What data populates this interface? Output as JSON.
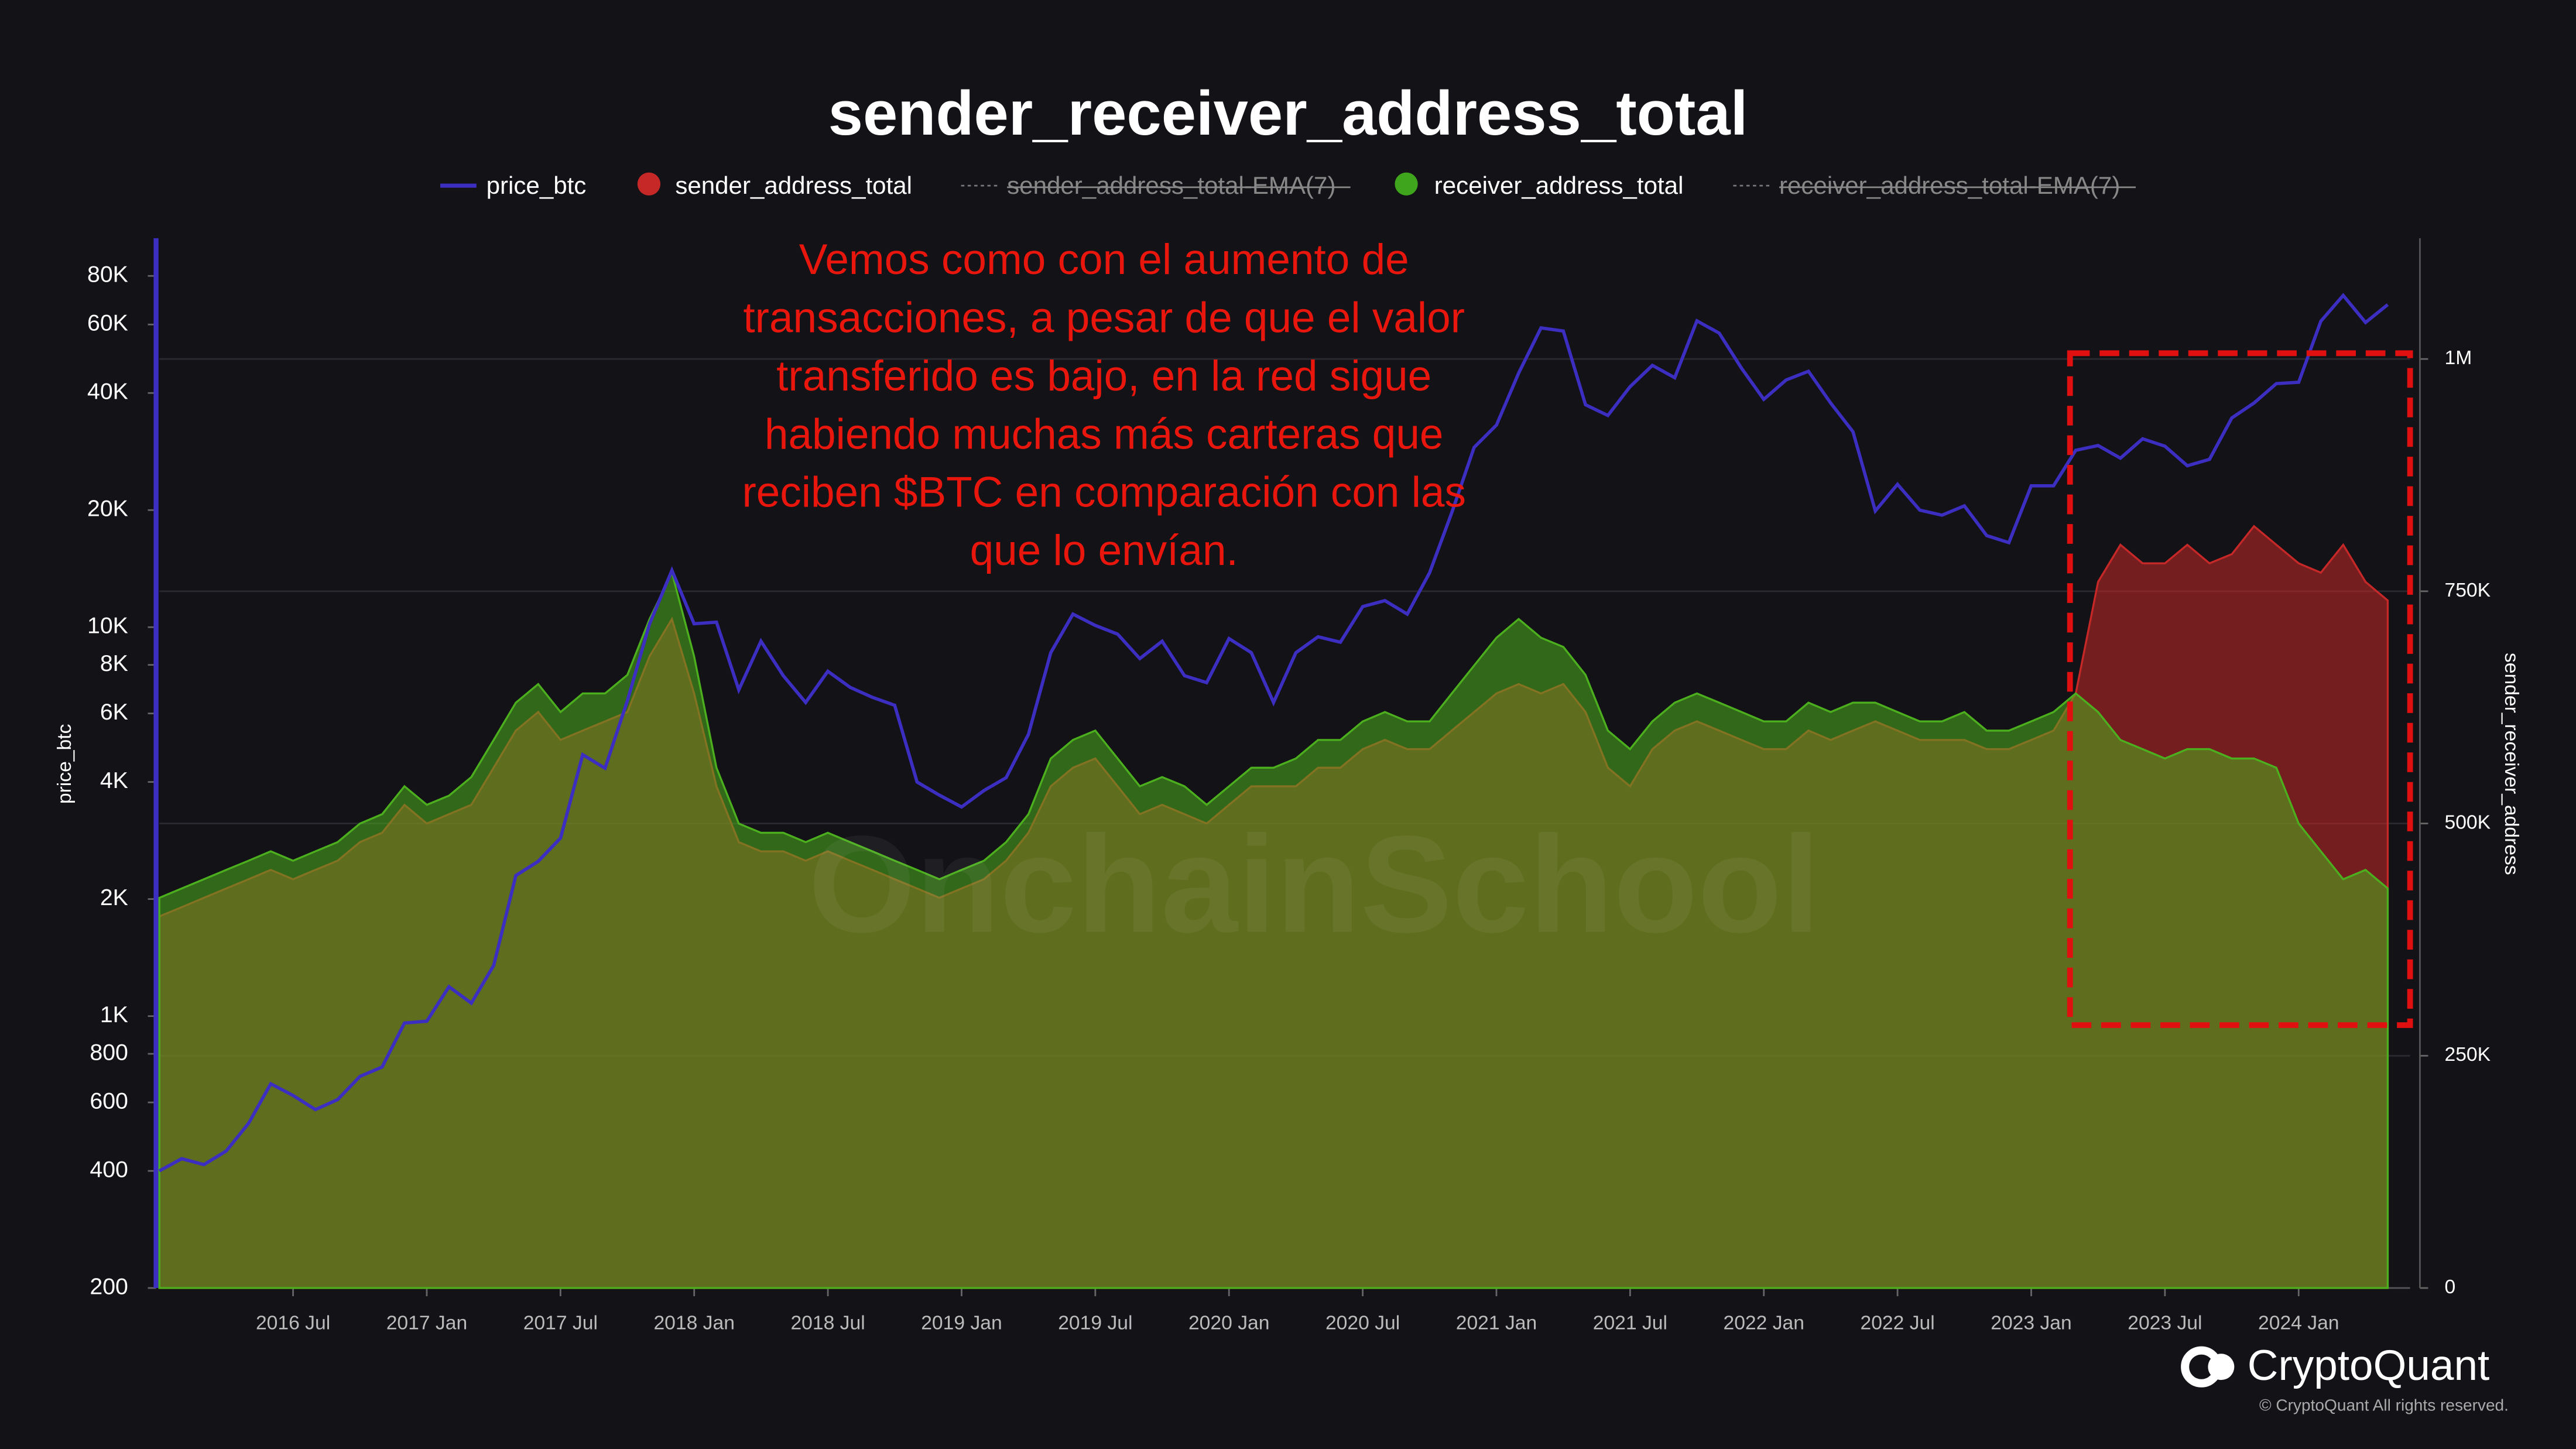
{
  "chart_data": {
    "type": "dual_axis_area_line",
    "title": "sender_receiver_address_total",
    "ylabel": "price_btc",
    "y2label": "sender_receiver_address",
    "log_y": true,
    "grid": true,
    "annotation": [
      "Vemos como con el aumento de",
      "transacciones, a pesar de que el valor",
      "transferido es bajo, en la red sigue",
      "habiendo muchas más carteras que",
      "reciben $BTC en comparación con las",
      "que lo envían."
    ],
    "watermark": "OnchainSchool",
    "brand": "CryptoQuant",
    "copyright": "© CryptoQuant All rights reserved.",
    "legend_hidden": [
      "sender_address_total-EMA(7)",
      "receiver_address_total-EMA(7)"
    ],
    "xlim": [
      "2016-01",
      "2024-06"
    ],
    "xticks": [
      {
        "value": "2016-07",
        "label": "2016 Jul"
      },
      {
        "value": "2017-01",
        "label": "2017 Jan"
      },
      {
        "value": "2017-07",
        "label": "2017 Jul"
      },
      {
        "value": "2018-01",
        "label": "2018 Jan"
      },
      {
        "value": "2018-07",
        "label": "2018 Jul"
      },
      {
        "value": "2019-01",
        "label": "2019 Jan"
      },
      {
        "value": "2019-07",
        "label": "2019 Jul"
      },
      {
        "value": "2020-01",
        "label": "2020 Jan"
      },
      {
        "value": "2020-07",
        "label": "2020 Jul"
      },
      {
        "value": "2021-01",
        "label": "2021 Jan"
      },
      {
        "value": "2021-07",
        "label": "2021 Jul"
      },
      {
        "value": "2022-01",
        "label": "2022 Jan"
      },
      {
        "value": "2022-07",
        "label": "2022 Jul"
      },
      {
        "value": "2023-01",
        "label": "2023 Jan"
      },
      {
        "value": "2023-07",
        "label": "2023 Jul"
      },
      {
        "value": "2024-01",
        "label": "2024 Jan"
      }
    ],
    "ylim": [
      200,
      100000
    ],
    "yticks": [
      200,
      400,
      600,
      800,
      {
        "value": 1000,
        "label": "1K"
      },
      {
        "value": 2000,
        "label": "2K"
      },
      {
        "value": 4000,
        "label": "4K"
      },
      {
        "value": 6000,
        "label": "6K"
      },
      {
        "value": 8000,
        "label": "8K"
      },
      {
        "value": 10000,
        "label": "10K"
      },
      {
        "value": 20000,
        "label": "20K"
      },
      {
        "value": 40000,
        "label": "40K"
      },
      {
        "value": 60000,
        "label": "60K"
      },
      {
        "value": 80000,
        "label": "80K"
      }
    ],
    "y2lim": [
      0,
      1130000
    ],
    "y2ticks": [
      0,
      {
        "value": 250000,
        "label": "250K"
      },
      {
        "value": 500000,
        "label": "500K"
      },
      {
        "value": 750000,
        "label": "750K"
      },
      {
        "value": 1000000,
        "label": "1M"
      }
    ],
    "x": [
      "2016-01",
      "2016-02",
      "2016-03",
      "2016-04",
      "2016-05",
      "2016-06",
      "2016-07",
      "2016-08",
      "2016-09",
      "2016-10",
      "2016-11",
      "2016-12",
      "2017-01",
      "2017-02",
      "2017-03",
      "2017-04",
      "2017-05",
      "2017-06",
      "2017-07",
      "2017-08",
      "2017-09",
      "2017-10",
      "2017-11",
      "2017-12",
      "2018-01",
      "2018-02",
      "2018-03",
      "2018-04",
      "2018-05",
      "2018-06",
      "2018-07",
      "2018-08",
      "2018-09",
      "2018-10",
      "2018-11",
      "2018-12",
      "2019-01",
      "2019-02",
      "2019-03",
      "2019-04",
      "2019-05",
      "2019-06",
      "2019-07",
      "2019-08",
      "2019-09",
      "2019-10",
      "2019-11",
      "2019-12",
      "2020-01",
      "2020-02",
      "2020-03",
      "2020-04",
      "2020-05",
      "2020-06",
      "2020-07",
      "2020-08",
      "2020-09",
      "2020-10",
      "2020-11",
      "2020-12",
      "2021-01",
      "2021-02",
      "2021-03",
      "2021-04",
      "2021-05",
      "2021-06",
      "2021-07",
      "2021-08",
      "2021-09",
      "2021-10",
      "2021-11",
      "2021-12",
      "2022-01",
      "2022-02",
      "2022-03",
      "2022-04",
      "2022-05",
      "2022-06",
      "2022-07",
      "2022-08",
      "2022-09",
      "2022-10",
      "2022-11",
      "2022-12",
      "2023-01",
      "2023-02",
      "2023-03",
      "2023-04",
      "2023-05",
      "2023-06",
      "2023-07",
      "2023-08",
      "2023-09",
      "2023-10",
      "2023-11",
      "2023-12",
      "2024-01",
      "2024-02",
      "2024-03",
      "2024-04",
      "2024-05"
    ],
    "series": [
      {
        "name": "sender_address_total",
        "color": "#c62828",
        "axis": "y2",
        "kind": "area",
        "values": [
          400000,
          410000,
          420000,
          430000,
          440000,
          450000,
          440000,
          450000,
          460000,
          480000,
          490000,
          520000,
          500000,
          510000,
          520000,
          560000,
          600000,
          620000,
          590000,
          600000,
          610000,
          620000,
          680000,
          720000,
          640000,
          540000,
          480000,
          470000,
          470000,
          460000,
          470000,
          460000,
          450000,
          440000,
          430000,
          420000,
          430000,
          440000,
          460000,
          490000,
          540000,
          560000,
          570000,
          540000,
          510000,
          520000,
          510000,
          500000,
          520000,
          540000,
          540000,
          540000,
          560000,
          560000,
          580000,
          590000,
          580000,
          580000,
          600000,
          620000,
          640000,
          650000,
          640000,
          650000,
          620000,
          560000,
          540000,
          580000,
          600000,
          610000,
          600000,
          590000,
          580000,
          580000,
          600000,
          590000,
          600000,
          610000,
          600000,
          590000,
          590000,
          590000,
          580000,
          580000,
          590000,
          600000,
          640000,
          760000,
          800000,
          780000,
          780000,
          800000,
          780000,
          790000,
          820000,
          800000,
          780000,
          770000,
          800000,
          760000,
          740000
        ]
      },
      {
        "name": "receiver_address_total",
        "color": "#4caf1e",
        "axis": "y2",
        "kind": "area",
        "values": [
          420000,
          430000,
          440000,
          450000,
          460000,
          470000,
          460000,
          470000,
          480000,
          500000,
          510000,
          540000,
          520000,
          530000,
          550000,
          590000,
          630000,
          650000,
          620000,
          640000,
          640000,
          660000,
          720000,
          770000,
          680000,
          560000,
          500000,
          490000,
          490000,
          480000,
          490000,
          480000,
          470000,
          460000,
          450000,
          440000,
          450000,
          460000,
          480000,
          510000,
          570000,
          590000,
          600000,
          570000,
          540000,
          550000,
          540000,
          520000,
          540000,
          560000,
          560000,
          570000,
          590000,
          590000,
          610000,
          620000,
          610000,
          610000,
          640000,
          670000,
          700000,
          720000,
          700000,
          690000,
          660000,
          600000,
          580000,
          610000,
          630000,
          640000,
          630000,
          620000,
          610000,
          610000,
          630000,
          620000,
          630000,
          630000,
          620000,
          610000,
          610000,
          620000,
          600000,
          600000,
          610000,
          620000,
          640000,
          620000,
          590000,
          580000,
          570000,
          580000,
          580000,
          570000,
          570000,
          560000,
          500000,
          470000,
          440000,
          450000,
          430000
        ]
      },
      {
        "name": "price_btc",
        "color": "#3b2ec0",
        "axis": "y",
        "kind": "line",
        "values": [
          400,
          430,
          415,
          450,
          530,
          670,
          625,
          575,
          610,
          700,
          740,
          960,
          970,
          1190,
          1080,
          1350,
          2300,
          2500,
          2870,
          4700,
          4340,
          6470,
          10200,
          14000,
          10200,
          10300,
          6900,
          9200,
          7500,
          6400,
          7700,
          7000,
          6600,
          6300,
          4000,
          3700,
          3450,
          3800,
          4100,
          5300,
          8600,
          10800,
          10100,
          9600,
          8300,
          9200,
          7500,
          7200,
          9350,
          8600,
          6400,
          8600,
          9450,
          9150,
          11300,
          11700,
          10800,
          13800,
          19700,
          29000,
          33100,
          45000,
          58800,
          57700,
          37300,
          35000,
          41500,
          47100,
          43800,
          61300,
          57000,
          46300,
          38500,
          43200,
          45500,
          37700,
          31800,
          19900,
          23300,
          20000,
          19400,
          20500,
          17200,
          16500,
          23100,
          23100,
          28500,
          29300,
          27200,
          30500,
          29200,
          26000,
          27000,
          34500,
          37700,
          42300,
          42600,
          61200,
          71300,
          60700,
          67500
        ]
      }
    ]
  }
}
